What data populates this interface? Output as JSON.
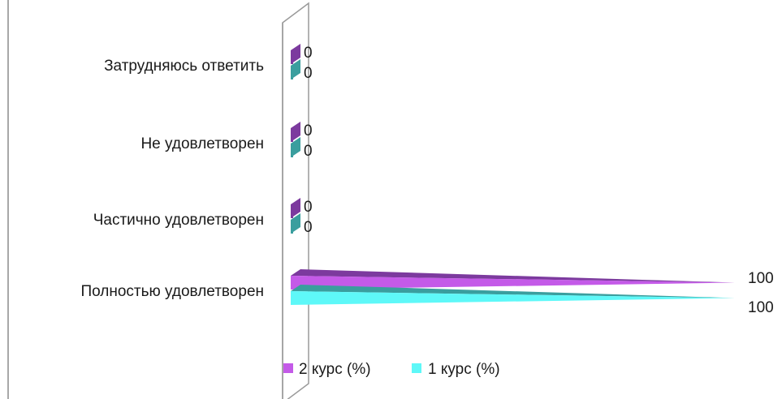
{
  "chart_data": {
    "type": "bar",
    "orientation": "horizontal",
    "style": "3d-cone",
    "categories": [
      "Затрудняюсь ответить",
      "Не удовлетворен",
      "Частично удовлетворен",
      "Полностью удовлетворен"
    ],
    "series": [
      {
        "name": "2 курс (%)",
        "values": [
          0,
          0,
          0,
          100
        ],
        "color": "#c45ae8",
        "side_color": "#7c3a9e"
      },
      {
        "name": "1 курс (%)",
        "values": [
          0,
          0,
          0,
          100
        ],
        "color": "#5ef8f8",
        "side_color": "#3a9e9e"
      }
    ],
    "data_labels": true,
    "xlim": [
      0,
      100
    ],
    "legend_position": "bottom"
  }
}
